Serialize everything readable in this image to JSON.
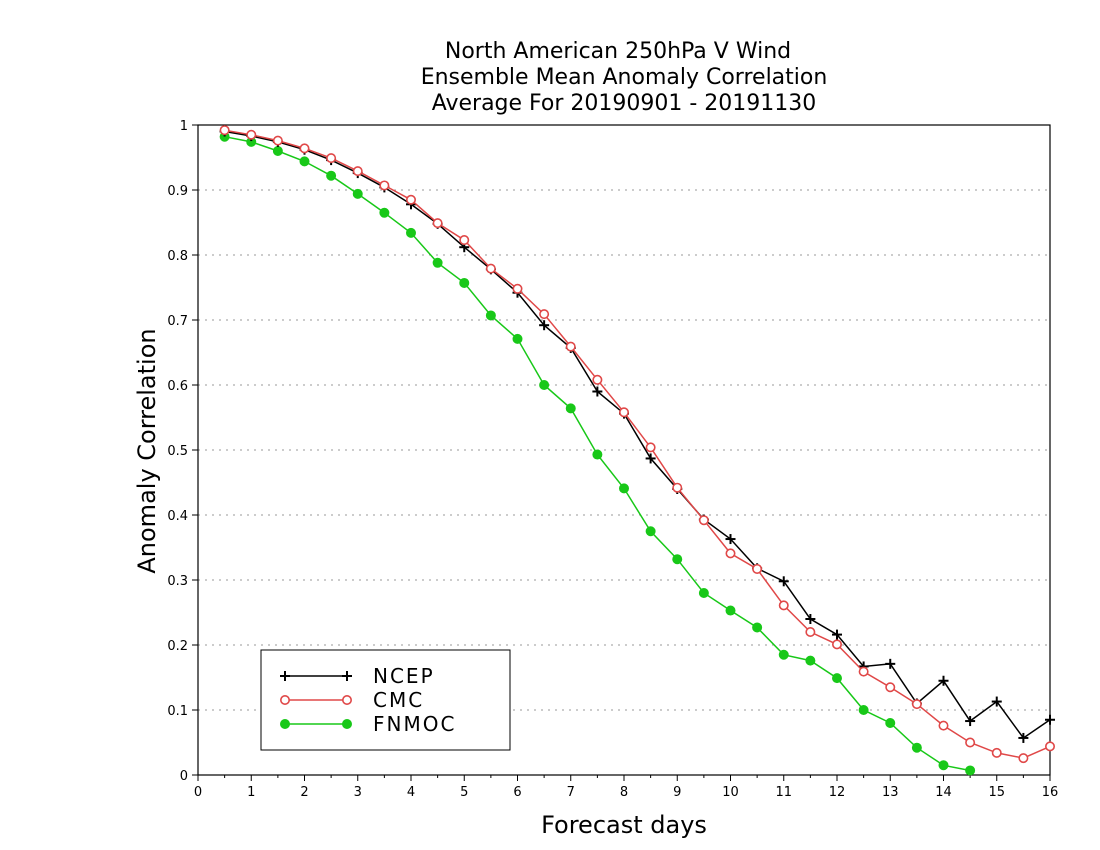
{
  "chart_data": {
    "type": "line",
    "title_lines": [
      "North American 250hPa V Wind",
      "Ensemble Mean Anomaly Correlation",
      "Average For 20190901 - 20191130"
    ],
    "xlabel": "Forecast days",
    "ylabel": "Anomaly Correlation",
    "xlim": [
      0,
      16
    ],
    "ylim": [
      0,
      1
    ],
    "x_ticks": [
      "0",
      "1",
      "2",
      "3",
      "4",
      "5",
      "6",
      "7",
      "8",
      "9",
      "10",
      "11",
      "12",
      "13",
      "14",
      "15",
      "16"
    ],
    "y_ticks": [
      "0",
      "0.1",
      "0.2",
      "0.3",
      "0.4",
      "0.5",
      "0.6",
      "0.7",
      "0.8",
      "0.9",
      "1"
    ],
    "grid": "dotted horizontal",
    "legend_position": "bottom-left",
    "series": [
      {
        "name": "NCEP",
        "color": "#000000",
        "marker": "plus",
        "x": [
          0.5,
          1,
          1.5,
          2,
          2.5,
          3,
          3.5,
          4,
          4.5,
          5,
          5.5,
          6,
          6.5,
          7,
          7.5,
          8,
          8.5,
          9,
          9.5,
          10,
          10.5,
          11,
          11.5,
          12,
          12.5,
          13,
          13.5,
          14,
          14.5,
          15,
          15.5,
          16
        ],
        "values": [
          0.99,
          0.983,
          0.974,
          0.962,
          0.946,
          0.926,
          0.904,
          0.878,
          0.848,
          0.812,
          0.778,
          0.742,
          0.692,
          0.657,
          0.59,
          0.556,
          0.487,
          0.44,
          0.393,
          0.363,
          0.318,
          0.298,
          0.24,
          0.216,
          0.167,
          0.171,
          0.11,
          0.145,
          0.083,
          0.113,
          0.057,
          0.085
        ]
      },
      {
        "name": "CMC",
        "color": "#e04848",
        "marker": "open-circle",
        "x": [
          0.5,
          1,
          1.5,
          2,
          2.5,
          3,
          3.5,
          4,
          4.5,
          5,
          5.5,
          6,
          6.5,
          7,
          7.5,
          8,
          8.5,
          9,
          9.5,
          10,
          10.5,
          11,
          11.5,
          12,
          12.5,
          13,
          13.5,
          14,
          14.5,
          15,
          15.5,
          16
        ],
        "values": [
          0.992,
          0.985,
          0.976,
          0.964,
          0.949,
          0.929,
          0.907,
          0.885,
          0.849,
          0.823,
          0.779,
          0.748,
          0.709,
          0.659,
          0.608,
          0.558,
          0.504,
          0.442,
          0.392,
          0.341,
          0.317,
          0.261,
          0.22,
          0.201,
          0.159,
          0.135,
          0.109,
          0.076,
          0.05,
          0.034,
          0.026,
          0.044
        ]
      },
      {
        "name": "FNMOC",
        "color": "#18c818",
        "marker": "filled-circle",
        "x": [
          0.5,
          1,
          1.5,
          2,
          2.5,
          3,
          3.5,
          4,
          4.5,
          5,
          5.5,
          6,
          6.5,
          7,
          7.5,
          8,
          8.5,
          9,
          9.5,
          10,
          10.5,
          11,
          11.5,
          12,
          12.5,
          13,
          13.5,
          14,
          14.5
        ],
        "values": [
          0.982,
          0.974,
          0.96,
          0.944,
          0.922,
          0.894,
          0.865,
          0.834,
          0.788,
          0.757,
          0.707,
          0.671,
          0.6,
          0.564,
          0.493,
          0.441,
          0.375,
          0.332,
          0.28,
          0.253,
          0.227,
          0.185,
          0.176,
          0.149,
          0.1,
          0.08,
          0.042,
          0.015,
          0.007
        ]
      }
    ]
  }
}
